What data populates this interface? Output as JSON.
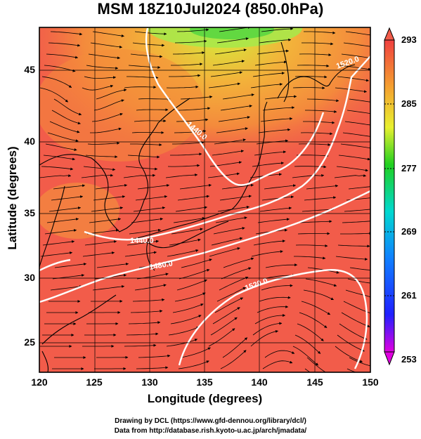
{
  "title": "MSM 18Z10Jul2024 (850.0hPa)",
  "axes": {
    "xlabel": "Longitude (degrees)",
    "ylabel": "Latitude  (degrees)",
    "x_ticks": [
      "120",
      "125",
      "130",
      "135",
      "140",
      "145",
      "150"
    ],
    "y_ticks": [
      "25",
      "30",
      "35",
      "40",
      "45"
    ]
  },
  "colorbar": {
    "ticks": [
      "293",
      "285",
      "277",
      "269",
      "261",
      "253"
    ],
    "min": 253,
    "max": 293
  },
  "contours": {
    "labels": [
      "1440.0",
      "1480.0",
      "1520.0",
      "1520.0",
      "1440.0"
    ]
  },
  "colors": {
    "warm": "#f25c4a",
    "orange": "#f4a23a",
    "yellow": "#e6e83a",
    "green": "#38d52f",
    "contour": "#ffffff",
    "coast": "#000000"
  },
  "credits": {
    "line1": "Drawing by DCL (https://www.gfd-dennou.org/library/dcl/)",
    "line2": "Data from http://database.rish.kyoto-u.ac.jp/arch/jmadata/"
  }
}
